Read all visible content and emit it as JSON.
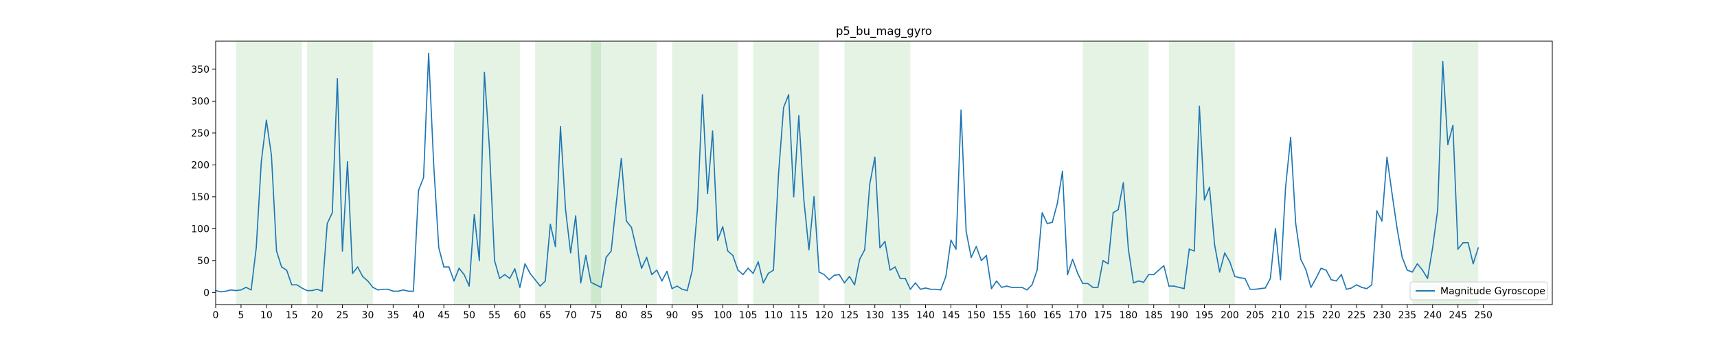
{
  "chart_data": {
    "type": "line",
    "title": "p5_bu_mag_gyro",
    "xlabel": "",
    "ylabel": "",
    "xlim": [
      0,
      263.6
    ],
    "ylim": [
      -19,
      394
    ],
    "xticks": [
      0,
      5,
      10,
      15,
      20,
      25,
      30,
      35,
      40,
      45,
      50,
      55,
      60,
      65,
      70,
      75,
      80,
      85,
      90,
      95,
      100,
      105,
      110,
      115,
      120,
      125,
      130,
      135,
      140,
      145,
      150,
      155,
      160,
      165,
      170,
      175,
      180,
      185,
      190,
      195,
      200,
      205,
      210,
      215,
      220,
      225,
      230,
      235,
      240,
      245,
      250
    ],
    "yticks": [
      0,
      50,
      100,
      150,
      200,
      250,
      300,
      350
    ],
    "grid": false,
    "legend_position": "lower-right",
    "series": [
      {
        "name": "Magnitude Gyroscope",
        "color": "#1f77b4",
        "x_start": 0,
        "x_step": 1,
        "values": [
          3,
          1,
          2,
          4,
          3,
          4,
          8,
          4,
          70,
          205,
          270,
          215,
          65,
          40,
          35,
          12,
          12,
          7,
          3,
          3,
          5,
          2,
          108,
          125,
          335,
          65,
          205,
          30,
          40,
          25,
          18,
          8,
          4,
          5,
          5,
          2,
          2,
          4,
          2,
          2,
          160,
          180,
          375,
          200,
          70,
          40,
          40,
          18,
          38,
          28,
          10,
          122,
          50,
          345,
          225,
          50,
          22,
          28,
          22,
          37,
          8,
          45,
          30,
          20,
          10,
          18,
          107,
          72,
          260,
          130,
          62,
          120,
          15,
          58,
          16,
          12,
          8,
          55,
          65,
          140,
          210,
          112,
          102,
          68,
          38,
          55,
          28,
          35,
          18,
          33,
          6,
          10,
          5,
          3,
          35,
          130,
          310,
          155,
          253,
          82,
          103,
          65,
          58,
          35,
          28,
          38,
          30,
          48,
          15,
          30,
          35,
          185,
          290,
          310,
          150,
          277,
          145,
          67,
          150,
          32,
          28,
          20,
          27,
          28,
          15,
          25,
          12,
          52,
          67,
          170,
          212,
          70,
          80,
          35,
          40,
          22,
          22,
          5,
          15,
          5,
          7,
          5,
          5,
          4,
          25,
          82,
          68,
          286,
          96,
          55,
          72,
          50,
          58,
          6,
          18,
          8,
          10,
          8,
          8,
          8,
          4,
          12,
          35,
          125,
          108,
          110,
          140,
          190,
          28,
          52,
          30,
          14,
          14,
          8,
          8,
          50,
          45,
          125,
          130,
          172,
          68,
          15,
          18,
          16,
          28,
          28,
          35,
          42,
          10,
          10,
          8,
          6,
          68,
          65,
          292,
          145,
          165,
          75,
          32,
          62,
          48,
          25,
          23,
          22,
          5,
          5,
          6,
          7,
          22,
          100,
          20,
          165,
          243,
          108,
          52,
          36,
          8,
          22,
          38,
          35,
          20,
          18,
          28,
          5,
          7,
          12,
          8,
          6,
          12,
          128,
          112,
          212,
          155,
          100,
          55,
          35,
          32,
          45,
          35,
          22,
          70,
          130,
          362,
          232,
          262,
          68,
          78,
          78,
          45,
          70
        ]
      }
    ],
    "shaded_regions": [
      [
        4,
        17
      ],
      [
        18,
        31
      ],
      [
        47,
        60
      ],
      [
        63,
        76
      ],
      [
        74,
        87
      ],
      [
        90,
        103
      ],
      [
        106,
        119
      ],
      [
        124,
        137
      ],
      [
        171,
        184
      ],
      [
        188,
        201
      ],
      [
        236,
        249
      ]
    ]
  },
  "legend": {
    "label": "Magnitude Gyroscope"
  },
  "colors": {
    "line": "#1f77b4",
    "shade": "#2ca02c",
    "axes": "#000000",
    "background": "#ffffff"
  }
}
